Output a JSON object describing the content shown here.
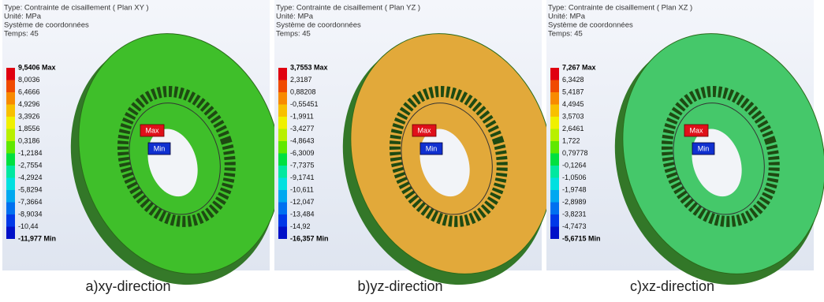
{
  "panels": [
    {
      "header": [
        "Type: Contrainte de cisaillement ( Plan XY )",
        "Unité: MPa",
        "Système de coordonnées",
        "Temps: 45"
      ],
      "legend": [
        "9,5406 Max",
        "8,0036",
        "6,4666",
        "4,9296",
        "3,3926",
        "1,8556",
        "0,3186",
        "-1,2184",
        "-2,7554",
        "-4,2924",
        "-5,8294",
        "-7,3664",
        "-8,9034",
        "-10,44",
        "-11,977 Min"
      ],
      "max_tag": "Max",
      "min_tag": "Min",
      "color": "#3fbf2a",
      "caption": "a)xy-direction"
    },
    {
      "header": [
        "Type: Contrainte de cisaillement ( Plan YZ )",
        "Unité: MPa",
        "Système de coordonnées",
        "Temps: 45"
      ],
      "legend": [
        "3,7553 Max",
        "2,3187",
        "0,88208",
        "-0,55451",
        "-1,9911",
        "-3,4277",
        "-4,8643",
        "-6,3009",
        "-7,7375",
        "-9,1741",
        "-10,611",
        "-12,047",
        "-13,484",
        "-14,92",
        "-16,357 Min"
      ],
      "max_tag": "Max",
      "min_tag": "Min",
      "color": "#e2a93a",
      "caption": "b)yz-direction"
    },
    {
      "header": [
        "Type: Contrainte de cisaillement ( Plan XZ )",
        "Unité: MPa",
        "Système de coordonnées",
        "Temps: 45"
      ],
      "legend": [
        "7,267 Max",
        "6,3428",
        "5,4187",
        "4,4945",
        "3,5703",
        "2,6461",
        "1,722",
        "0,79778",
        "-0,1264",
        "-1,0506",
        "-1,9748",
        "-2,8989",
        "-3,8231",
        "-4,7473",
        "-5,6715 Min"
      ],
      "max_tag": "Max",
      "min_tag": "Min",
      "color": "#45c86a",
      "caption": "c)xz-direction"
    }
  ]
}
